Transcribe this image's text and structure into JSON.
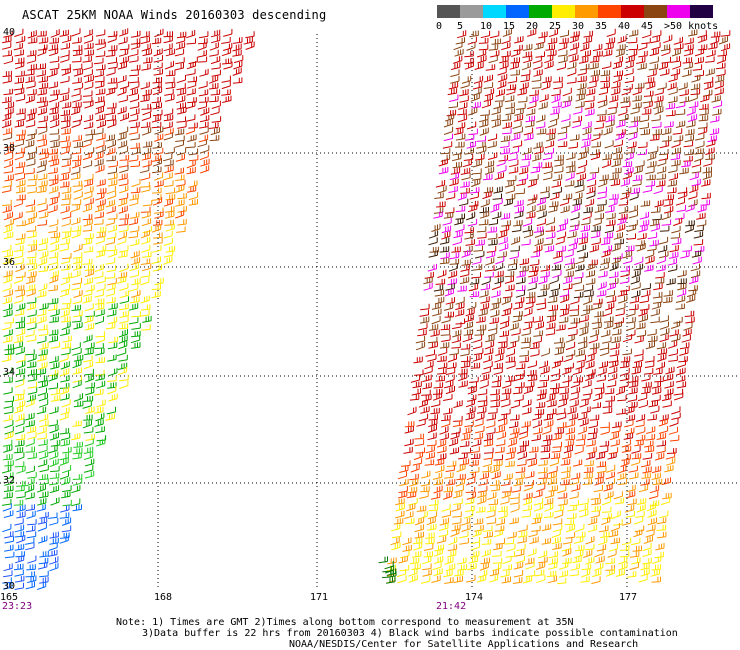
{
  "title": "ASCAT 25KM NOAA Winds 20160303 descending",
  "legend": {
    "labels": [
      "0",
      "5",
      "10",
      "15",
      "20",
      "25",
      "30",
      "35",
      "40",
      "45",
      ">50 knots"
    ],
    "colors": [
      "#555555",
      "#9a9a9a",
      "#00d8ff",
      "#0066ff",
      "#00aa00",
      "#ffee00",
      "#ff9a00",
      "#ff4400",
      "#cc0000",
      "#8b4513",
      "#ee00ee",
      "#220044"
    ]
  },
  "axes": {
    "lat_labels": [
      "40",
      "38",
      "36",
      "34",
      "32",
      "30"
    ],
    "lon_labels": [
      "165",
      "168",
      "171",
      "174",
      "177"
    ]
  },
  "pass_times": [
    "23:23",
    "21:42"
  ],
  "notes": [
    "Note: 1) Times are GMT 2)Times along bottom correspond to measurement at 35N",
    "3)Data buffer is 22 hrs from 20160303 4) Black wind barbs indicate possible contamination",
    "NOAA/NESDIS/Center for Satellite Applications and Research"
  ]
}
